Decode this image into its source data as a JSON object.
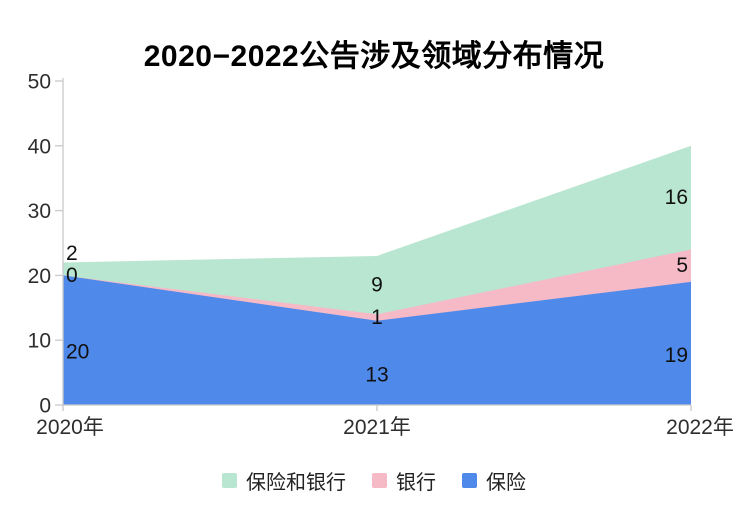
{
  "title": "2020−2022公告涉及领域分布情况",
  "chart_data": {
    "type": "area",
    "stacked": true,
    "title": "2020−2022公告涉及领域分布情况",
    "categories": [
      "2020年",
      "2021年",
      "2022年"
    ],
    "series": [
      {
        "name": "保险",
        "color": "#4f89ea",
        "values": [
          20,
          13,
          19
        ]
      },
      {
        "name": "银行",
        "color": "#f5bac5",
        "values": [
          0,
          1,
          5
        ]
      },
      {
        "name": "保险和银行",
        "color": "#b9e6d0",
        "values": [
          2,
          9,
          16
        ]
      }
    ],
    "totals": [
      22,
      23,
      40
    ],
    "ylim": [
      0,
      50
    ],
    "yticks": [
      0,
      10,
      20,
      30,
      40,
      50
    ],
    "grid": false,
    "legend_position": "bottom",
    "legend_order": [
      "保险和银行",
      "银行",
      "保险"
    ],
    "axis_color": "#c9c9c9",
    "tick_label_color": "#2e2e2e",
    "data_label_color": "#111111"
  }
}
